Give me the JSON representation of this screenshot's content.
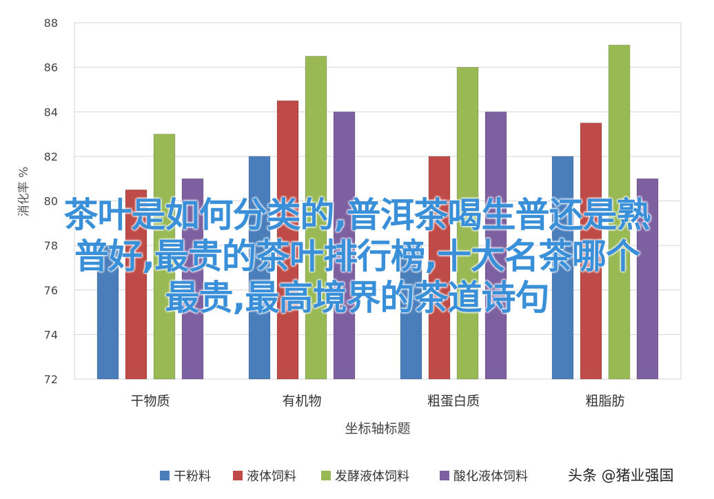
{
  "chart_data": {
    "type": "bar",
    "categories": [
      "干物质",
      "有机物",
      "粗蛋白质",
      "粗脂肪"
    ],
    "series": [
      {
        "name": "干粉料",
        "color": "#4a7ebb",
        "values": [
          78,
          82,
          78,
          82
        ]
      },
      {
        "name": "液体饲料",
        "color": "#be4b48",
        "values": [
          80.5,
          84.5,
          82,
          83.5
        ]
      },
      {
        "name": "发酵液体饲料",
        "color": "#98b954",
        "values": [
          83,
          86.5,
          86,
          87
        ]
      },
      {
        "name": "酸化液体饲料",
        "color": "#7d60a0",
        "values": [
          81,
          84,
          84,
          81
        ]
      }
    ],
    "xlabel": "坐标轴标题",
    "ylabel": "消化率 %",
    "ylim": [
      72,
      88
    ],
    "yticks": [
      72,
      74,
      76,
      78,
      80,
      82,
      84,
      86,
      88
    ],
    "grid": true,
    "legend": "bottom"
  },
  "overlay": {
    "lines": [
      "茶叶是如何分类的,普洱茶喝生普还是熟",
      "普好,最贵的茶叶排行榜,十大名茶哪个",
      "最贵,最高境界的茶道诗句"
    ]
  },
  "watermark": {
    "text": "头条 @猪业强国"
  }
}
